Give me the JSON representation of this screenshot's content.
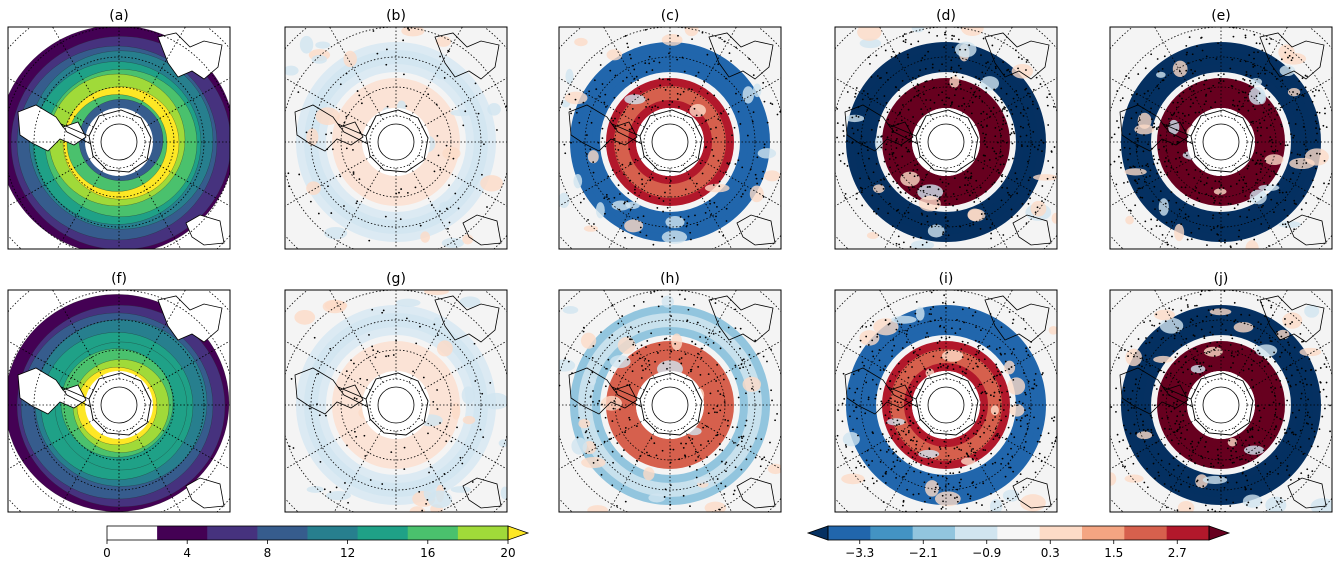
{
  "figure": {
    "panels": [
      {
        "label": "(a)",
        "kind": "sequential",
        "pattern": "ring",
        "stipple": "none"
      },
      {
        "label": "(b)",
        "kind": "diverging",
        "pattern": "weak",
        "stipple": "sparse"
      },
      {
        "label": "(c)",
        "kind": "diverging",
        "pattern": "annular-moderate",
        "stipple": "medium"
      },
      {
        "label": "(d)",
        "kind": "diverging",
        "pattern": "annular-strong",
        "stipple": "dense"
      },
      {
        "label": "(e)",
        "kind": "diverging",
        "pattern": "annular-strongest",
        "stipple": "dense"
      },
      {
        "label": "(f)",
        "kind": "sequential",
        "pattern": "broad",
        "stipple": "none"
      },
      {
        "label": "(g)",
        "kind": "diverging",
        "pattern": "weak",
        "stipple": "sparse"
      },
      {
        "label": "(h)",
        "kind": "diverging",
        "pattern": "mixed",
        "stipple": "medium"
      },
      {
        "label": "(i)",
        "kind": "diverging",
        "pattern": "annular-partial",
        "stipple": "dense"
      },
      {
        "label": "(j)",
        "kind": "diverging",
        "pattern": "annular-partial-strong",
        "stipple": "dense"
      }
    ],
    "colorbars": [
      {
        "name": "sequential",
        "ticks": [
          "0",
          "4",
          "8",
          "12",
          "16",
          "20"
        ],
        "range": [
          0,
          20
        ],
        "extend": "max",
        "colors": [
          "#ffffff",
          "#440154",
          "#46327e",
          "#365c8d",
          "#277f8e",
          "#1fa187",
          "#4ac16d",
          "#a0da39",
          "#fde725"
        ]
      },
      {
        "name": "diverging",
        "ticks": [
          "−3.3",
          "−2.1",
          "−0.9",
          "0.3",
          "1.5",
          "2.7"
        ],
        "range": [
          -3.9,
          3.3
        ],
        "extend": "both",
        "colors": [
          "#053061",
          "#2166ac",
          "#4393c3",
          "#92c5de",
          "#d1e5f0",
          "#f7f7f7",
          "#fddbc7",
          "#f4a582",
          "#d6604d",
          "#b2182b",
          "#67001f"
        ]
      }
    ]
  }
}
